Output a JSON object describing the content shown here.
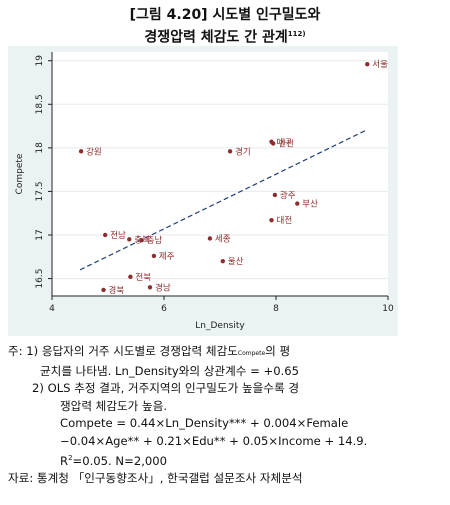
{
  "title": {
    "line1": "[그림 4.20] 시도별 인구밀도와",
    "line2": "경쟁압력 체감도 간 관계",
    "footnote_mark": "112)"
  },
  "chart_data": {
    "type": "scatter",
    "xlabel": "Ln_Density",
    "ylabel": "Compete",
    "xlim": [
      4,
      10
    ],
    "ylim": [
      16.3,
      19.1
    ],
    "xticks": [
      4,
      6,
      8,
      10
    ],
    "yticks": [
      16.5,
      17,
      17.5,
      18,
      18.5,
      19
    ],
    "grid": "horizontal",
    "points": [
      {
        "label": "서울",
        "x": 9.63,
        "y": 18.96
      },
      {
        "label": "대구",
        "x": 7.92,
        "y": 18.07
      },
      {
        "label": "인천",
        "x": 7.95,
        "y": 18.05
      },
      {
        "label": "경기",
        "x": 7.18,
        "y": 17.96
      },
      {
        "label": "강원",
        "x": 4.52,
        "y": 17.96
      },
      {
        "label": "광주",
        "x": 7.98,
        "y": 17.46
      },
      {
        "label": "부산",
        "x": 8.38,
        "y": 17.36
      },
      {
        "label": "대전",
        "x": 7.92,
        "y": 17.17
      },
      {
        "label": "전남",
        "x": 4.95,
        "y": 17.0
      },
      {
        "label": "충북",
        "x": 5.38,
        "y": 16.95
      },
      {
        "label": "충남",
        "x": 5.6,
        "y": 16.94
      },
      {
        "label": "세종",
        "x": 6.82,
        "y": 16.96
      },
      {
        "label": "제주",
        "x": 5.82,
        "y": 16.76
      },
      {
        "label": "울산",
        "x": 7.05,
        "y": 16.7
      },
      {
        "label": "전북",
        "x": 5.4,
        "y": 16.52
      },
      {
        "label": "경남",
        "x": 5.75,
        "y": 16.4
      },
      {
        "label": "경북",
        "x": 4.92,
        "y": 16.37
      }
    ],
    "fit_line": {
      "x": [
        4.5,
        9.6
      ],
      "y": [
        16.6,
        18.2
      ]
    },
    "point_color": "#8e2d2d",
    "line_color": "#1f3f73"
  },
  "notes": {
    "n1_prefix": "주: 1) 응답자의 거주 시도별로 경쟁압력 체감도",
    "n1_sub": "Compete",
    "n1_suffix": "의 평",
    "n1_line2": "균치를 나타냄. Ln_Density와의 상관계수 = +0.65",
    "n2_line1": "2) OLS 추정 결과, 거주지역의 인구밀도가 높을수록 경",
    "n2_line2": "쟁압력 체감도가 높음.",
    "n2_line3": "Compete = 0.44×Ln_Density*** + 0.004×Female",
    "n2_line4": "−0.04×Age** + 0.21×Edu** + 0.05×Income + 14.9.",
    "n2_line5_pre": "R",
    "n2_line5_sup": "2",
    "n2_line5_post": "=0.05. N=2,000",
    "source": "자료: 통계청 「인구동향조사」, 한국갤럽 설문조사 자체분석"
  }
}
